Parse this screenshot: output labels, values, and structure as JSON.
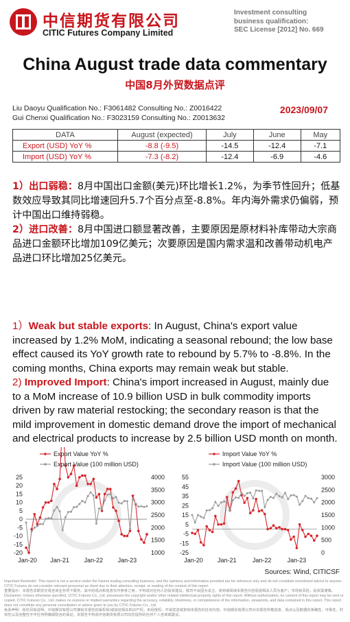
{
  "header": {
    "company_cn": "中信期货有限公司",
    "company_en": "CITIC Futures Company Limited",
    "license_lines": [
      "Investment consulting",
      "business qualification:",
      "SEC License [2012] No. 669"
    ]
  },
  "title": "China August trade data commentary",
  "subtitle": "中国8月外贸数据点评",
  "analysts": [
    "Liu Daoyu  Qualification No.: F3061482  Consulting No.: Z0016422",
    "Gui Chenxi Qualification No.: F3023159  Consulting No.: Z0013632"
  ],
  "date": "2023/09/07",
  "table": {
    "headers": [
      "DATA",
      "August (expected)",
      "July",
      "June",
      "May"
    ],
    "rows": [
      {
        "label": "Export (USD) YoY %",
        "values": [
          "-8.8 (-9.5)",
          "-14.5",
          "-12.4",
          "-7.1"
        ]
      },
      {
        "label": "Import (USD) YoY %",
        "values": [
          "-7.3 (-8.2)",
          "-12.4",
          "-6.9",
          "-4.6"
        ]
      }
    ]
  },
  "cn": {
    "p1_num": "1）",
    "p1_head": "出口弱稳：",
    "p1_body": "8月中国出口金额(美元)环比增长1.2%，为季节性回升；低基数效应导致其同比增速回升5.7个百分点至-8.8%。年内海外需求仍偏弱，预计中国出口维持弱稳。",
    "p2_num": "2）",
    "p2_head": "进口改善：",
    "p2_body": "8月中国进口额显著改善，主要原因是原材料补库带动大宗商品进口金额环比增加109亿美元；次要原因是国内需求温和改善带动机电产品进口环比增加25亿美元。"
  },
  "en": {
    "p1_num": "1）",
    "p1_head": "Weak but stable exports",
    "p1_body": ": In August, China's export value increased by 1.2% MoM, indicating a seasonal rebound; the low base effect caused its YoY growth rate to rebound by 5.7% to -8.8%. In the coming months, China exports may remain weak but stable.",
    "p2_num": "2) ",
    "p2_head": "Improved Import",
    "p2_body": ": China's import increased in August, mainly due to a MoM increase of 10.9 billion USD in bulk commodity imports driven by raw material restocking; the secondary reason is that the mild improvement in domestic demand drove the import of mechanical and electrical products to increase by 2.5 billion USD month on month."
  },
  "chart_data": [
    {
      "type": "line",
      "series": [
        {
          "name": "Export Value YoY %",
          "axis": "left",
          "color": "#d7262d",
          "values": [
            -17,
            -20,
            -6,
            3,
            -3,
            1,
            7,
            10,
            10,
            11,
            21,
            18,
            24,
            60,
            32,
            25,
            27,
            32,
            20,
            25,
            26,
            26,
            21,
            21,
            24,
            13,
            15,
            5,
            15,
            18,
            18,
            7,
            5,
            -1,
            -9,
            -10,
            -10,
            -7,
            14,
            9,
            -7,
            -12,
            -14,
            -9
          ]
        },
        {
          "name": "Export Value (100 million USD)",
          "axis": "right",
          "color": "#9a9a9a",
          "values": [
            2200,
            1180,
            1850,
            2000,
            2060,
            2140,
            2140,
            2350,
            2380,
            2370,
            2680,
            2820,
            2650,
            1900,
            2410,
            2620,
            2630,
            2810,
            2820,
            2940,
            3060,
            3000,
            3250,
            3400,
            3280,
            2160,
            2760,
            2730,
            3080,
            3310,
            3330,
            3160,
            3220,
            2990,
            2960,
            3060,
            3050,
            1950,
            3150,
            2950,
            2830,
            2850,
            2820,
            2850
          ]
        },
        {
          "name": "",
          "axis": "left",
          "color": "#d7262d",
          "dotted": true,
          "values": [
            null,
            null,
            null,
            null,
            null,
            null,
            null,
            null,
            null,
            null,
            null,
            null,
            null,
            null,
            null,
            null,
            null,
            null,
            null,
            null,
            null,
            null,
            null,
            null,
            null,
            null,
            null,
            null,
            null,
            null,
            null,
            null,
            null,
            null,
            null,
            null,
            null,
            null,
            null,
            null,
            null,
            null,
            null,
            -9
          ]
        }
      ],
      "x_ticks": [
        "Jan-20",
        "Jan-21",
        "Jan-22",
        "Jan-23"
      ],
      "y_left_ticks": [
        "25",
        "20",
        "15",
        "10",
        "5",
        "0",
        "-5",
        "-10",
        "-15",
        "-20"
      ],
      "y_left": [
        -20,
        25
      ],
      "y_right_ticks": [
        "4000",
        "3500",
        "3000",
        "2500",
        "2000",
        "1500",
        "1000"
      ],
      "y_right": [
        1000,
        4000
      ],
      "legend": "top-left"
    },
    {
      "type": "line",
      "series": [
        {
          "name": "Import Value YoY %",
          "axis": "left",
          "color": "#d7262d",
          "values": [
            -4,
            -5,
            -1,
            -14,
            -17,
            3,
            -1,
            -3,
            14,
            5,
            5,
            6,
            34,
            20,
            39,
            43,
            51,
            36,
            28,
            33,
            17,
            20,
            32,
            19,
            20,
            16,
            0,
            1,
            4,
            1,
            2,
            0,
            0,
            -1,
            -11,
            -8,
            -20,
            5,
            -1,
            -8,
            -5,
            -7,
            -12,
            -7
          ]
        },
        {
          "name": "Import Value (100 million USD)",
          "axis": "right",
          "color": "#9a9a9a",
          "values": [
            1500,
            1200,
            1500,
            1440,
            1380,
            1680,
            1690,
            1770,
            2020,
            1860,
            2000,
            2040,
            2020,
            1660,
            2090,
            2200,
            2180,
            2380,
            2260,
            2370,
            2390,
            2160,
            2480,
            2460,
            2460,
            1810,
            2100,
            2220,
            2180,
            2350,
            2250,
            2200,
            2380,
            2130,
            2280,
            2290,
            2230,
            1910,
            2060,
            2260,
            2170,
            2150,
            2000,
            2170
          ]
        },
        {
          "name": "",
          "axis": "left",
          "color": "#d7262d",
          "dotted": true,
          "values": [
            null,
            null,
            null,
            null,
            null,
            null,
            null,
            null,
            null,
            null,
            null,
            null,
            null,
            null,
            null,
            null,
            null,
            null,
            null,
            null,
            null,
            null,
            null,
            null,
            null,
            null,
            null,
            null,
            null,
            null,
            null,
            null,
            null,
            null,
            null,
            null,
            null,
            null,
            null,
            null,
            null,
            null,
            null,
            -7
          ]
        }
      ],
      "x_ticks": [
        "Jan-20",
        "Jan-21",
        "Jan-22",
        "Jan-23"
      ],
      "y_left_ticks": [
        "55",
        "45",
        "35",
        "25",
        "15",
        "5",
        "-5",
        "-15",
        "-25"
      ],
      "y_left": [
        -25,
        55
      ],
      "y_right_ticks": [
        "3000",
        "2500",
        "2000",
        "1500",
        "1000",
        "500",
        "0"
      ],
      "y_right": [
        0,
        3000
      ],
      "legend": "top-left"
    }
  ],
  "sources": "Sources: Wind, CITICSF",
  "disclaimer": [
    "Important Reminder: This report is not a service under the futures trading consulting business, and the opinions and information provided are for reference only and do not constitute investment advice to anyone. CITIC Futures do not consider relevant personnel as client due to their attention, receipt, or reading of the content of this report.",
    "重要提示：本报告非期货交易咨询业务项下服务，其中的观点和信息仅作参考之用，不构成对任何人的投资建议。我司不会因为关注、收到或阅读本报告内容而视相关人员为客户；市场有风险，投资需谨慎。",
    "Disclaimer: Unless otherwise specified, CITIC Futures Co., Ltd. possesses the copyright and/or other related intellectual property rights of this report. Without authorization, no content of this report may be sent or copied. CITIC Futures Co., Ltd. makes no express or implied warranties regarding the accuracy, reliability, timeliness, or completeness of the information, viewpoints, and data contained in this report. This report does not constitute any personal consultation or advice given to you by CITIC Futures Co., Ltd.",
    "免责声明：除非另有说明，中信期货有限公司拥有本报告的版权和/或其他相关知识产权。未经授权，不得发送或复制本报告的任何内容。中信期货有限公司对本报告所载信息、观点以及数据的准确性、可靠性、时效性以及完整性不作任何明确或隐含的保证。本报告不构成中信期货有限公司向您提供的任何个人咨询或建议。"
  ]
}
